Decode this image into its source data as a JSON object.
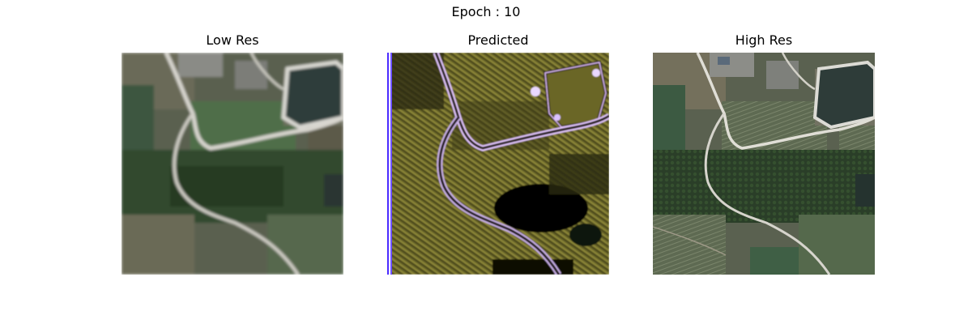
{
  "figure": {
    "suptitle": "Epoch : 10"
  },
  "panels": [
    {
      "title": "Low Res"
    },
    {
      "title": "Predicted"
    },
    {
      "title": "High Res"
    }
  ],
  "colors": {
    "background": "#ffffff",
    "field_green": "#3f5a3e",
    "forest_dark": "#233622",
    "road": "#d8d6cf",
    "reservoir": "#2f3d3a",
    "pred_yellow": "#8f8a35",
    "pred_dark": "#1a1808",
    "pred_edge_purple": "#b07ad8",
    "pred_border_blue": "#4b2bff"
  }
}
